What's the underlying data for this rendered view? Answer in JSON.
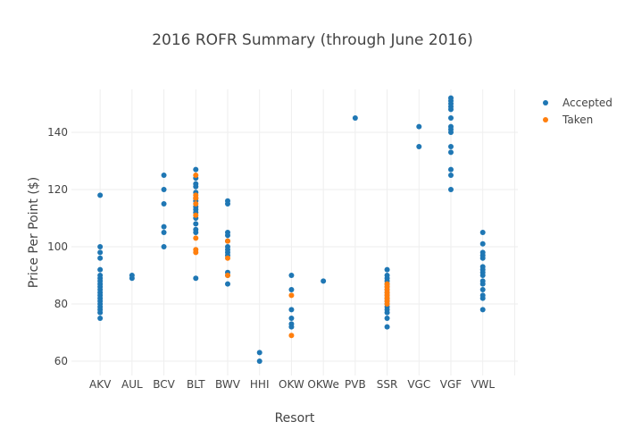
{
  "chart_data": {
    "type": "scatter",
    "title": "2016 ROFR Summary (through June 2016)",
    "xlabel": "Resort",
    "ylabel": "Price Per Point ($)",
    "categories": [
      "AKV",
      "AUL",
      "BCV",
      "BLT",
      "BWV",
      "HHI",
      "OKW",
      "OKWe",
      "PVB",
      "SSR",
      "VGC",
      "VGF",
      "VWL"
    ],
    "yticks": [
      60,
      80,
      100,
      120,
      140
    ],
    "ylim": [
      55,
      155
    ],
    "grid": true,
    "legend_position": "top-right",
    "series": [
      {
        "name": "Accepted",
        "color": "#1f77b4",
        "points": [
          [
            "AKV",
            118
          ],
          [
            "AKV",
            100
          ],
          [
            "AKV",
            98
          ],
          [
            "AKV",
            96
          ],
          [
            "AKV",
            92
          ],
          [
            "AKV",
            90
          ],
          [
            "AKV",
            89
          ],
          [
            "AKV",
            88
          ],
          [
            "AKV",
            87
          ],
          [
            "AKV",
            86
          ],
          [
            "AKV",
            85
          ],
          [
            "AKV",
            84
          ],
          [
            "AKV",
            83
          ],
          [
            "AKV",
            82
          ],
          [
            "AKV",
            81
          ],
          [
            "AKV",
            80
          ],
          [
            "AKV",
            79
          ],
          [
            "AKV",
            78
          ],
          [
            "AKV",
            77
          ],
          [
            "AKV",
            75
          ],
          [
            "AUL",
            90
          ],
          [
            "AUL",
            89
          ],
          [
            "BCV",
            125
          ],
          [
            "BCV",
            120
          ],
          [
            "BCV",
            115
          ],
          [
            "BCV",
            107
          ],
          [
            "BCV",
            105
          ],
          [
            "BCV",
            100
          ],
          [
            "BLT",
            127
          ],
          [
            "BLT",
            124
          ],
          [
            "BLT",
            122
          ],
          [
            "BLT",
            121
          ],
          [
            "BLT",
            119
          ],
          [
            "BLT",
            117
          ],
          [
            "BLT",
            116
          ],
          [
            "BLT",
            114
          ],
          [
            "BLT",
            113
          ],
          [
            "BLT",
            112
          ],
          [
            "BLT",
            110
          ],
          [
            "BLT",
            108
          ],
          [
            "BLT",
            106
          ],
          [
            "BLT",
            105
          ],
          [
            "BLT",
            89
          ],
          [
            "BWV",
            116
          ],
          [
            "BWV",
            115
          ],
          [
            "BWV",
            105
          ],
          [
            "BWV",
            104
          ],
          [
            "BWV",
            102
          ],
          [
            "BWV",
            100
          ],
          [
            "BWV",
            99
          ],
          [
            "BWV",
            98
          ],
          [
            "BWV",
            97
          ],
          [
            "BWV",
            91
          ],
          [
            "BWV",
            90
          ],
          [
            "BWV",
            87
          ],
          [
            "HHI",
            63
          ],
          [
            "HHI",
            60
          ],
          [
            "OKW",
            90
          ],
          [
            "OKW",
            85
          ],
          [
            "OKW",
            78
          ],
          [
            "OKW",
            75
          ],
          [
            "OKW",
            73
          ],
          [
            "OKW",
            72
          ],
          [
            "OKWe",
            88
          ],
          [
            "PVB",
            145
          ],
          [
            "SSR",
            92
          ],
          [
            "SSR",
            90
          ],
          [
            "SSR",
            89
          ],
          [
            "SSR",
            88
          ],
          [
            "SSR",
            87
          ],
          [
            "SSR",
            86
          ],
          [
            "SSR",
            85
          ],
          [
            "SSR",
            84
          ],
          [
            "SSR",
            83
          ],
          [
            "SSR",
            82
          ],
          [
            "SSR",
            81
          ],
          [
            "SSR",
            80
          ],
          [
            "SSR",
            79
          ],
          [
            "SSR",
            78
          ],
          [
            "SSR",
            77
          ],
          [
            "SSR",
            75
          ],
          [
            "SSR",
            72
          ],
          [
            "VGC",
            142
          ],
          [
            "VGC",
            135
          ],
          [
            "VGF",
            152
          ],
          [
            "VGF",
            151
          ],
          [
            "VGF",
            150
          ],
          [
            "VGF",
            149
          ],
          [
            "VGF",
            148
          ],
          [
            "VGF",
            145
          ],
          [
            "VGF",
            142
          ],
          [
            "VGF",
            141
          ],
          [
            "VGF",
            140
          ],
          [
            "VGF",
            135
          ],
          [
            "VGF",
            133
          ],
          [
            "VGF",
            127
          ],
          [
            "VGF",
            125
          ],
          [
            "VGF",
            120
          ],
          [
            "VWL",
            105
          ],
          [
            "VWL",
            101
          ],
          [
            "VWL",
            98
          ],
          [
            "VWL",
            97
          ],
          [
            "VWL",
            96
          ],
          [
            "VWL",
            93
          ],
          [
            "VWL",
            92
          ],
          [
            "VWL",
            91
          ],
          [
            "VWL",
            90
          ],
          [
            "VWL",
            88
          ],
          [
            "VWL",
            87
          ],
          [
            "VWL",
            85
          ],
          [
            "VWL",
            83
          ],
          [
            "VWL",
            82
          ],
          [
            "VWL",
            78
          ]
        ]
      },
      {
        "name": "Taken",
        "color": "#ff7f0e",
        "points": [
          [
            "BLT",
            125
          ],
          [
            "BLT",
            118
          ],
          [
            "BLT",
            117
          ],
          [
            "BLT",
            115
          ],
          [
            "BLT",
            111
          ],
          [
            "BLT",
            103
          ],
          [
            "BLT",
            99
          ],
          [
            "BLT",
            98
          ],
          [
            "BWV",
            102
          ],
          [
            "BWV",
            96
          ],
          [
            "BWV",
            90
          ],
          [
            "OKW",
            83
          ],
          [
            "OKW",
            69
          ],
          [
            "SSR",
            87
          ],
          [
            "SSR",
            86
          ],
          [
            "SSR",
            85
          ],
          [
            "SSR",
            84
          ],
          [
            "SSR",
            83
          ],
          [
            "SSR",
            82
          ],
          [
            "SSR",
            81
          ],
          [
            "SSR",
            80
          ]
        ]
      }
    ]
  }
}
